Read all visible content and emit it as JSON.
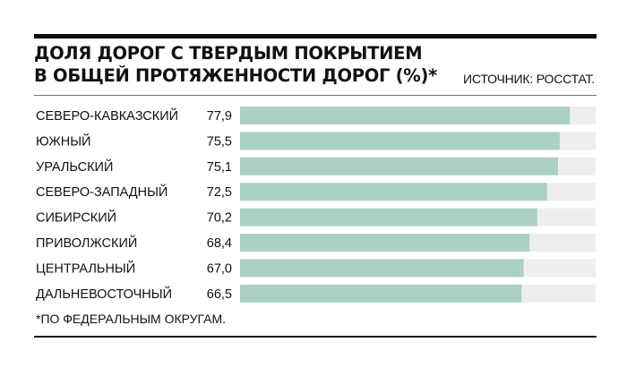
{
  "chart_data": {
    "type": "bar",
    "orientation": "horizontal",
    "title": "ДОЛЯ ДОРОГ С ТВЕРДЫМ ПОКРЫТИЕМ В ОБЩЕЙ ПРОТЯЖЕННОСТИ ДОРОГ (%)*",
    "title_lines": [
      "ДОЛЯ ДОРОГ С ТВЕРДЫМ ПОКРЫТИЕМ",
      "В ОБЩЕЙ ПРОТЯЖЕННОСТИ ДОРОГ (%)*"
    ],
    "source": "ИСТОЧНИК: РОССТАТ.",
    "footnote": "*ПО ФЕДЕРАЛЬНЫМ ОКРУГАМ.",
    "categories": [
      "СЕВЕРО-КАВКАЗСКИЙ",
      "ЮЖНЫЙ",
      "УРАЛЬСКИЙ",
      "СЕВЕРО-ЗАПАДНЫЙ",
      "СИБИРСКИЙ",
      "ПРИВОЛЖСКИЙ",
      "ЦЕНТРАЛЬНЫЙ",
      "ДАЛЬНЕВОСТОЧНЫЙ"
    ],
    "values": [
      77.9,
      75.5,
      75.1,
      72.5,
      70.2,
      68.4,
      67.0,
      66.5
    ],
    "value_labels": [
      "77,9",
      "75,5",
      "75,1",
      "72,5",
      "70,2",
      "68,4",
      "67,0",
      "66,5"
    ],
    "xlim": [
      0,
      84
    ],
    "grid": false,
    "colors": {
      "bar": "#abd0c4",
      "track": "#eeeeee"
    }
  }
}
